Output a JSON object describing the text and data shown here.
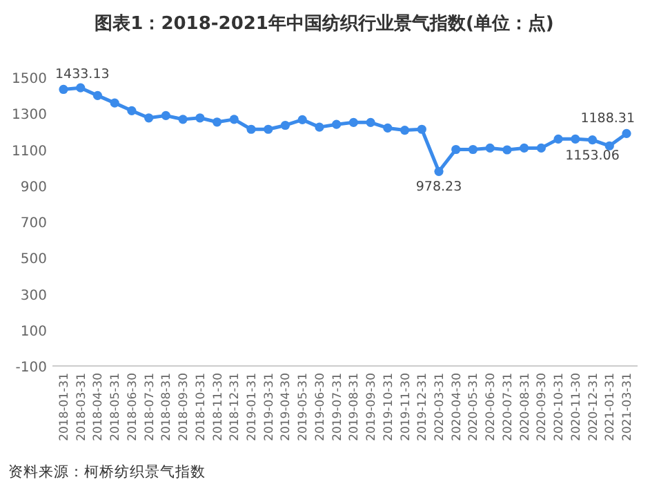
{
  "chart_data": {
    "type": "line",
    "title": "图表1：2018-2021年中国纺织行业景气指数(单位：点)",
    "annotations": [
      "资料来源：柯桥纺织景气指数"
    ],
    "categories": [
      "2018-01-31",
      "2018-03-31",
      "2018-04-30",
      "2018-05-31",
      "2018-06-30",
      "2018-07-31",
      "2018-08-31",
      "2018-09-30",
      "2018-10-31",
      "2018-11-30",
      "2018-12-31",
      "2019-01-31",
      "2019-03-31",
      "2019-04-30",
      "2019-05-31",
      "2019-06-30",
      "2019-07-31",
      "2019-08-31",
      "2019-09-30",
      "2019-10-31",
      "2019-11-30",
      "2019-12-31",
      "2020-03-31",
      "2020-04-30",
      "2020-05-31",
      "2020-06-30",
      "2020-07-31",
      "2020-08-31",
      "2020-09-30",
      "2020-10-31",
      "2020-11-30",
      "2020-12-31",
      "2021-01-31",
      "2021-03-31"
    ],
    "series": [
      {
        "color": "#3b8beb",
        "values": [
          1433.13,
          1442,
          1399,
          1358,
          1315,
          1275,
          1288,
          1267,
          1275,
          1252,
          1267,
          1212,
          1212,
          1234,
          1265,
          1224,
          1239,
          1250,
          1250,
          1219,
          1207,
          1212,
          978.23,
          1100,
          1100,
          1108,
          1098,
          1108,
          1108,
          1158,
          1158,
          1153.06,
          1120,
          1188.31
        ],
        "value_labels": [
          "1433.13",
          null,
          null,
          null,
          null,
          null,
          null,
          null,
          null,
          null,
          null,
          null,
          null,
          null,
          null,
          null,
          null,
          null,
          null,
          null,
          null,
          null,
          "978.23",
          null,
          null,
          null,
          null,
          null,
          null,
          null,
          null,
          "1153.06",
          null,
          "1188.31"
        ]
      }
    ],
    "ylim": [
      -100,
      1500
    ],
    "yticks": [
      -100,
      100,
      300,
      500,
      700,
      900,
      1100,
      1300,
      1500
    ],
    "marker": "circle"
  }
}
